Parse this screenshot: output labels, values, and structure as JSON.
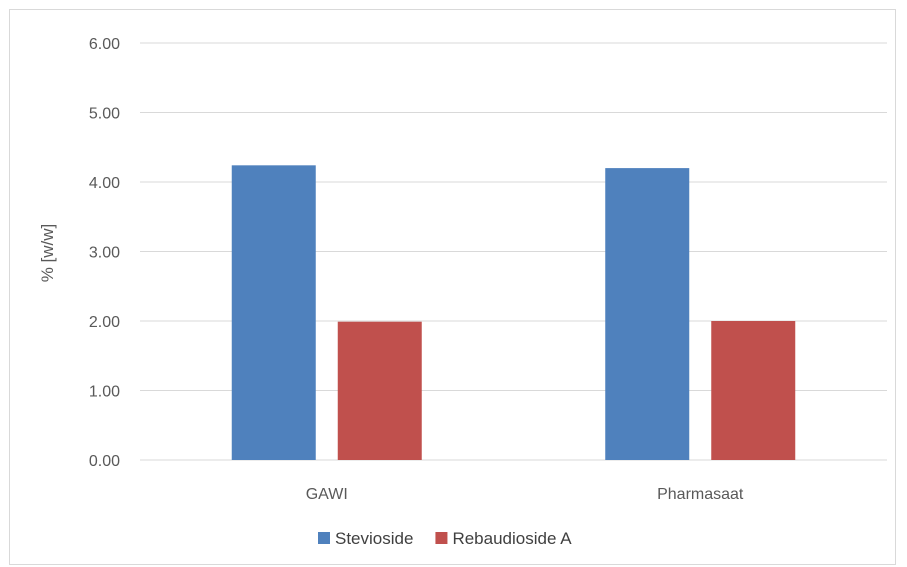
{
  "chart_data": {
    "type": "bar",
    "title": "",
    "xlabel": "",
    "ylabel": "% [w/w]",
    "ylim": [
      0,
      6
    ],
    "yticks": [
      "0.00",
      "1.00",
      "2.00",
      "3.00",
      "4.00",
      "5.00",
      "6.00"
    ],
    "categories": [
      "GAWI",
      "Pharmasaat"
    ],
    "series": [
      {
        "name": "Stevioside",
        "color": "#4f81bd",
        "values": [
          4.24,
          4.2
        ]
      },
      {
        "name": "Rebaudioside A",
        "color": "#c0504d",
        "values": [
          1.99,
          2.0
        ]
      }
    ],
    "grid": true,
    "legend_position": "bottom"
  }
}
